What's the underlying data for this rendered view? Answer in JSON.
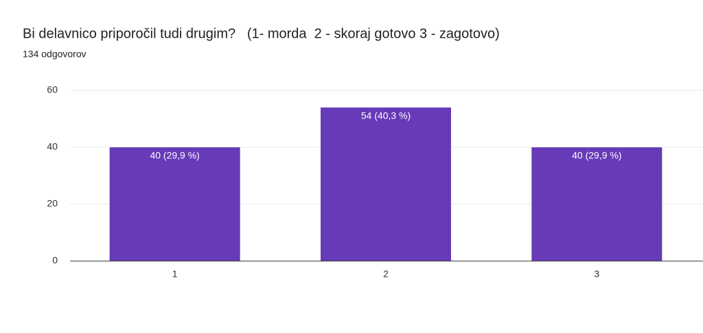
{
  "chart_data": {
    "type": "bar",
    "title": "Bi delavnico priporočil tudi drugim?   (1- morda  2 - skoraj gotovo 3 - zagotovo)",
    "subtitle": "134 odgovorov",
    "categories": [
      "1",
      "2",
      "3"
    ],
    "values": [
      40,
      54,
      40
    ],
    "value_labels": [
      "40 (29,9 %)",
      "54 (40,3 %)",
      "40 (29,9 %)"
    ],
    "color": "#673ab7",
    "ylim": [
      0,
      60
    ],
    "yticks": [
      0,
      20,
      40,
      60
    ],
    "grid": true
  }
}
